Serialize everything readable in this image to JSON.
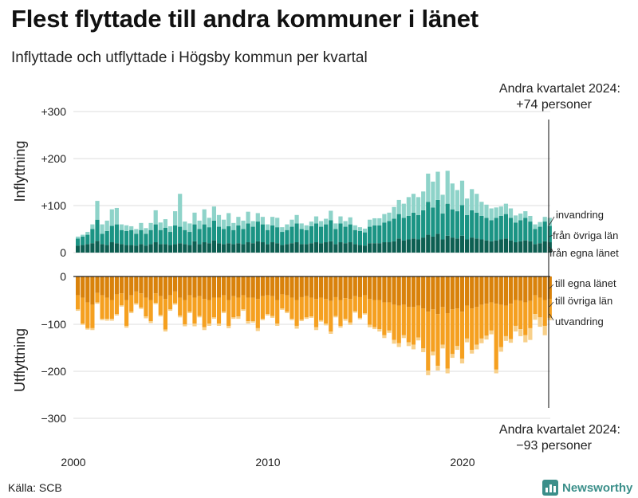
{
  "title": "Flest flyttade till andra kommuner i länet",
  "subtitle": "Inflyttade och utflyttade i Högsby kommun per kvartal",
  "source": "Källa: SCB",
  "brand": "Newsworthy",
  "chart_data": {
    "type": "bar",
    "stacked": true,
    "periods_start": "2000Q1",
    "periods_end": "2024Q2",
    "x_ticks": [
      "2000",
      "2010",
      "2020"
    ],
    "top_panel": {
      "axis_label": "Inflyttning",
      "ylim": [
        0,
        300
      ],
      "y_ticks": [
        "0",
        "+100",
        "+200",
        "+300"
      ],
      "note_line1": "Andra kvartalet 2024:",
      "note_line2": "+74 personer",
      "colors": [
        "#0d5f52",
        "#1b9484",
        "#8ed3c9"
      ],
      "series": [
        {
          "name": "från egna länet",
          "values": [
            15,
            16,
            18,
            20,
            25,
            18,
            16,
            22,
            20,
            18,
            16,
            16,
            15,
            18,
            15,
            18,
            22,
            18,
            18,
            16,
            18,
            20,
            18,
            16,
            24,
            18,
            22,
            20,
            26,
            20,
            18,
            20,
            18,
            20,
            18,
            22,
            20,
            24,
            22,
            18,
            22,
            20,
            16,
            18,
            20,
            22,
            18,
            18,
            20,
            22,
            20,
            22,
            24,
            18,
            22,
            20,
            22,
            18,
            16,
            15,
            20,
            20,
            20,
            22,
            22,
            24,
            30,
            26,
            28,
            30,
            28,
            32,
            38,
            34,
            40,
            28,
            36,
            32,
            30,
            36,
            28,
            32,
            30,
            28,
            26,
            24,
            26,
            28,
            30,
            26,
            22,
            24,
            26,
            24,
            18,
            20,
            24,
            22
          ]
        },
        {
          "name": "från övriga län",
          "values": [
            15,
            18,
            20,
            30,
            45,
            22,
            30,
            35,
            40,
            30,
            30,
            32,
            25,
            30,
            25,
            30,
            38,
            30,
            35,
            28,
            40,
            35,
            30,
            28,
            36,
            32,
            38,
            34,
            42,
            35,
            32,
            36,
            30,
            38,
            32,
            40,
            35,
            42,
            38,
            30,
            36,
            34,
            28,
            30,
            35,
            40,
            32,
            30,
            36,
            40,
            35,
            38,
            45,
            32,
            40,
            35,
            38,
            30,
            30,
            28,
            35,
            38,
            38,
            42,
            45,
            48,
            52,
            48,
            50,
            55,
            52,
            58,
            70,
            62,
            72,
            55,
            68,
            60,
            58,
            65,
            52,
            58,
            55,
            50,
            48,
            45,
            48,
            50,
            52,
            48,
            42,
            45,
            48,
            42,
            32,
            35,
            42,
            35
          ]
        },
        {
          "name": "invandring",
          "values": [
            4,
            4,
            6,
            10,
            40,
            20,
            22,
            35,
            35,
            12,
            12,
            8,
            10,
            15,
            12,
            15,
            30,
            16,
            18,
            12,
            30,
            70,
            18,
            18,
            25,
            18,
            32,
            20,
            30,
            25,
            20,
            28,
            15,
            18,
            18,
            25,
            12,
            18,
            16,
            12,
            18,
            20,
            10,
            12,
            15,
            18,
            12,
            10,
            10,
            15,
            12,
            12,
            20,
            12,
            15,
            12,
            15,
            10,
            8,
            8,
            15,
            15,
            15,
            18,
            18,
            25,
            30,
            30,
            40,
            40,
            38,
            40,
            60,
            55,
            60,
            40,
            70,
            55,
            45,
            52,
            35,
            45,
            40,
            30,
            28,
            25,
            22,
            20,
            22,
            20,
            15,
            14,
            14,
            12,
            10,
            10,
            10,
            17
          ]
        }
      ]
    },
    "bottom_panel": {
      "axis_label": "Utflyttning",
      "ylim": [
        -300,
        0
      ],
      "y_ticks": [
        "0",
        "−100",
        "−200",
        "−300"
      ],
      "note_line1": "Andra kvartalet 2024:",
      "note_line2": "−93 personer",
      "colors": [
        "#d9820b",
        "#f5a020",
        "#f8d08a"
      ],
      "series": [
        {
          "name": "till egna länet",
          "values": [
            -40,
            -45,
            -55,
            -60,
            -35,
            -40,
            -45,
            -50,
            -38,
            -36,
            -50,
            -40,
            -32,
            -36,
            -45,
            -50,
            -36,
            -42,
            -48,
            -40,
            -32,
            -45,
            -50,
            -40,
            -45,
            -42,
            -48,
            -50,
            -45,
            -45,
            -40,
            -50,
            -42,
            -45,
            -40,
            -45,
            -45,
            -48,
            -42,
            -40,
            -42,
            -50,
            -38,
            -40,
            -45,
            -50,
            -44,
            -42,
            -45,
            -48,
            -45,
            -48,
            -52,
            -44,
            -50,
            -46,
            -48,
            -42,
            -44,
            -40,
            -48,
            -50,
            -50,
            -55,
            -55,
            -60,
            -62,
            -60,
            -65,
            -65,
            -62,
            -68,
            -75,
            -70,
            -80,
            -65,
            -78,
            -70,
            -68,
            -75,
            -62,
            -68,
            -65,
            -60,
            -58,
            -55,
            -58,
            -60,
            -62,
            -58,
            -50,
            -52,
            -55,
            -52,
            -40,
            -45,
            -50,
            -48
          ]
        },
        {
          "name": "till övriga län",
          "values": [
            -30,
            -55,
            -55,
            -50,
            -20,
            -50,
            -45,
            -40,
            -42,
            -25,
            -55,
            -35,
            -25,
            -30,
            -40,
            -45,
            -20,
            -40,
            -65,
            -30,
            -25,
            -38,
            -52,
            -35,
            -55,
            -42,
            -60,
            -50,
            -42,
            -55,
            -35,
            -55,
            -45,
            -40,
            -30,
            -50,
            -50,
            -62,
            -48,
            -40,
            -42,
            -50,
            -30,
            -35,
            -45,
            -55,
            -48,
            -45,
            -40,
            -60,
            -48,
            -52,
            -65,
            -40,
            -55,
            -44,
            -50,
            -32,
            -44,
            -38,
            -55,
            -58,
            -62,
            -70,
            -60,
            -75,
            -80,
            -65,
            -75,
            -80,
            -68,
            -85,
            -125,
            -90,
            -110,
            -80,
            -118,
            -95,
            -80,
            -100,
            -70,
            -88,
            -80,
            -72,
            -68,
            -60,
            -140,
            -90,
            -65,
            -75,
            -55,
            -60,
            -70,
            -58,
            -40,
            -42,
            -55,
            -40
          ]
        },
        {
          "name": "utvandring",
          "values": [
            -3,
            -3,
            -3,
            -4,
            -3,
            -3,
            -4,
            -4,
            -3,
            -3,
            -4,
            -3,
            -3,
            -3,
            -4,
            -4,
            -3,
            -3,
            -4,
            -3,
            -3,
            -4,
            -4,
            -3,
            -6,
            -3,
            -6,
            -5,
            -3,
            -5,
            -3,
            -5,
            -3,
            -5,
            -3,
            -5,
            -3,
            -6,
            -3,
            -3,
            -4,
            -5,
            -3,
            -3,
            -3,
            -6,
            -3,
            -3,
            -3,
            -6,
            -3,
            -4,
            -5,
            -3,
            -4,
            -4,
            -5,
            -3,
            -3,
            -3,
            -5,
            -4,
            -5,
            -6,
            -5,
            -8,
            -8,
            -6,
            -8,
            -10,
            -6,
            -8,
            -10,
            -8,
            -10,
            -8,
            -10,
            -8,
            -8,
            -10,
            -8,
            -8,
            -10,
            -10,
            -8,
            -8,
            -8,
            -10,
            -10,
            -8,
            -12,
            -15,
            -15,
            -25,
            -12,
            -20,
            -20,
            -5
          ]
        }
      ]
    }
  }
}
